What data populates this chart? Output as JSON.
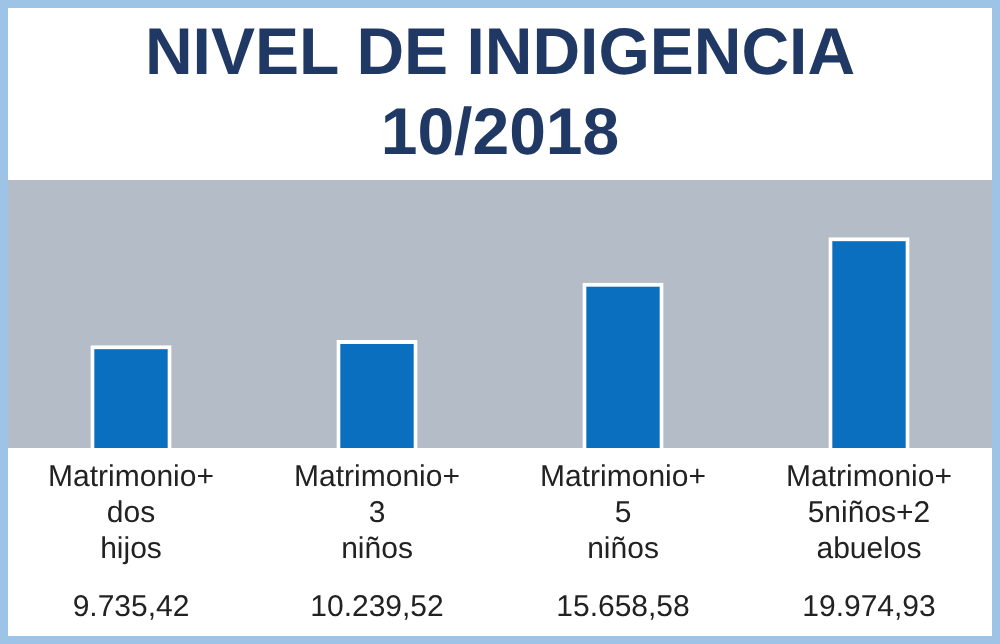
{
  "chart_data": {
    "type": "bar",
    "title": "NIVEL DE INDIGENCIA 10/2018",
    "categories": [
      "Matrimonio+ dos hijos",
      "Matrimonio+ 3 niños",
      "Matrimonio+ 5 niños",
      "Matrimonio+ 5niños+2 abuelos"
    ],
    "values": [
      9735.42,
      10239.52,
      15658.58,
      19974.93
    ],
    "value_labels": [
      "9.735,42",
      "10.239,52",
      "15.658,58",
      "19.974,93"
    ],
    "color": "#0b6fc0",
    "ylim": [
      0,
      25400
    ],
    "grid": false,
    "legend": false
  }
}
